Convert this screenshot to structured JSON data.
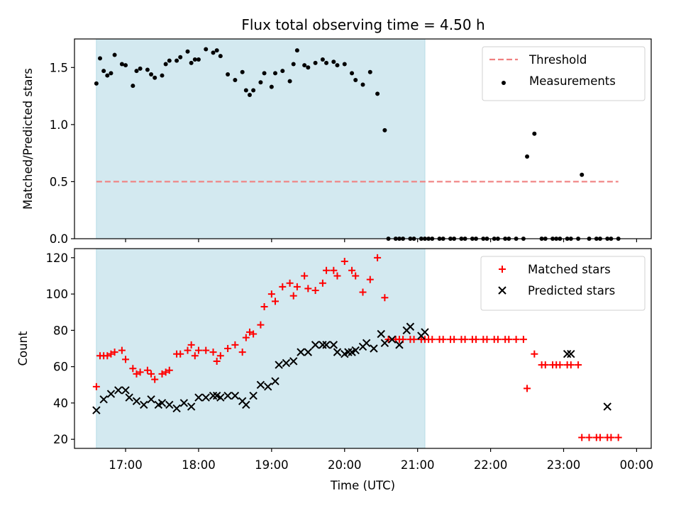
{
  "chart_data": [
    {
      "type": "scatter",
      "title": "Flux total observing time = 4.50 h",
      "xlabel": "",
      "ylabel": "Matched/Predicted stars",
      "xlim_hours": [
        16.3,
        24.2
      ],
      "ylim": [
        0,
        1.75
      ],
      "yticks": [
        0.0,
        0.5,
        1.0,
        1.5
      ],
      "ytick_labels": [
        "0.0",
        "0.5",
        "1.0",
        "1.5"
      ],
      "xticks_hours": [
        17,
        18,
        19,
        20,
        21,
        22,
        23,
        24
      ],
      "xtick_labels": [],
      "shaded_region_hours": [
        16.6,
        21.1
      ],
      "shaded_color": "#d3e9f0",
      "legend_position": "upper right",
      "threshold": {
        "name": "Threshold",
        "value": 0.5,
        "x_range_hours": [
          16.6,
          23.75
        ],
        "color": "#f08080"
      },
      "series": [
        {
          "name": "Measurements",
          "color": "#000000",
          "marker": "dot",
          "x_hours": [
            16.6,
            16.65,
            16.7,
            16.75,
            16.8,
            16.85,
            16.95,
            17.0,
            17.1,
            17.15,
            17.2,
            17.3,
            17.35,
            17.4,
            17.5,
            17.55,
            17.6,
            17.7,
            17.75,
            17.85,
            17.9,
            17.95,
            18.0,
            18.1,
            18.2,
            18.25,
            18.3,
            18.4,
            18.5,
            18.6,
            18.65,
            18.7,
            18.75,
            18.85,
            18.9,
            19.0,
            19.05,
            19.15,
            19.25,
            19.3,
            19.35,
            19.45,
            19.5,
            19.6,
            19.7,
            19.75,
            19.85,
            19.9,
            20.0,
            20.1,
            20.15,
            20.25,
            20.35,
            20.45,
            20.55,
            20.6,
            20.7,
            20.75,
            20.8,
            20.9,
            20.95,
            21.05,
            21.1,
            21.15,
            21.2,
            21.3,
            21.35,
            21.45,
            21.5,
            21.6,
            21.65,
            21.75,
            21.8,
            21.9,
            21.95,
            22.05,
            22.1,
            22.2,
            22.25,
            22.35,
            22.45,
            22.5,
            22.6,
            22.7,
            22.75,
            22.85,
            22.9,
            22.95,
            23.05,
            23.1,
            23.2,
            23.25,
            23.35,
            23.45,
            23.5,
            23.6,
            23.65,
            23.75
          ],
          "values": [
            1.36,
            1.58,
            1.47,
            1.43,
            1.45,
            1.61,
            1.53,
            1.52,
            1.34,
            1.47,
            1.49,
            1.48,
            1.44,
            1.41,
            1.43,
            1.53,
            1.56,
            1.56,
            1.59,
            1.64,
            1.54,
            1.57,
            1.57,
            1.66,
            1.63,
            1.65,
            1.6,
            1.44,
            1.39,
            1.46,
            1.3,
            1.26,
            1.3,
            1.37,
            1.45,
            1.33,
            1.45,
            1.47,
            1.38,
            1.53,
            1.65,
            1.52,
            1.5,
            1.54,
            1.57,
            1.54,
            1.55,
            1.52,
            1.53,
            1.45,
            1.39,
            1.35,
            1.46,
            1.27,
            0.95,
            0,
            0,
            0,
            0,
            0,
            0,
            0,
            0,
            0,
            0,
            0,
            0,
            0,
            0,
            0,
            0,
            0,
            0,
            0,
            0,
            0,
            0,
            0,
            0,
            0,
            0,
            0.72,
            0.92,
            0,
            0,
            0,
            0,
            0,
            0,
            0,
            0,
            0.56,
            0,
            0,
            0,
            0,
            0,
            0
          ]
        }
      ]
    },
    {
      "type": "scatter",
      "title": "",
      "xlabel": "Time (UTC)",
      "ylabel": "Count",
      "xlim_hours": [
        16.3,
        24.2
      ],
      "ylim": [
        15,
        125
      ],
      "yticks": [
        20,
        40,
        60,
        80,
        100,
        120
      ],
      "ytick_labels": [
        "20",
        "40",
        "60",
        "80",
        "100",
        "120"
      ],
      "xticks_hours": [
        17,
        18,
        19,
        20,
        21,
        22,
        23,
        24
      ],
      "xtick_labels": [
        "17:00",
        "18:00",
        "19:00",
        "20:00",
        "21:00",
        "22:00",
        "23:00",
        "00:00"
      ],
      "shaded_region_hours": [
        16.6,
        21.1
      ],
      "shaded_color": "#d3e9f0",
      "legend_position": "upper right",
      "series": [
        {
          "name": "Matched stars",
          "color": "#ff0000",
          "marker": "plus",
          "x_hours": [
            16.6,
            16.65,
            16.7,
            16.75,
            16.8,
            16.85,
            16.95,
            17.0,
            17.1,
            17.15,
            17.2,
            17.3,
            17.35,
            17.4,
            17.5,
            17.55,
            17.6,
            17.7,
            17.75,
            17.85,
            17.9,
            17.95,
            18.0,
            18.1,
            18.2,
            18.25,
            18.3,
            18.4,
            18.5,
            18.6,
            18.65,
            18.7,
            18.75,
            18.85,
            18.9,
            19.0,
            19.05,
            19.15,
            19.25,
            19.3,
            19.35,
            19.45,
            19.5,
            19.6,
            19.7,
            19.75,
            19.85,
            19.9,
            20.0,
            20.1,
            20.15,
            20.25,
            20.35,
            20.45,
            20.55,
            20.6,
            20.7,
            20.75,
            20.8,
            20.9,
            20.95,
            21.05,
            21.1,
            21.15,
            21.2,
            21.3,
            21.35,
            21.45,
            21.5,
            21.6,
            21.65,
            21.75,
            21.8,
            21.9,
            21.95,
            22.05,
            22.1,
            22.2,
            22.25,
            22.35,
            22.45,
            22.5,
            22.6,
            22.7,
            22.75,
            22.85,
            22.9,
            22.95,
            23.05,
            23.1,
            23.2,
            23.25,
            23.35,
            23.45,
            23.5,
            23.6,
            23.65,
            23.75
          ],
          "values": [
            49,
            66,
            66,
            66,
            67,
            68,
            69,
            64,
            59,
            56,
            57,
            58,
            56,
            53,
            56,
            57,
            58,
            67,
            67,
            69,
            72,
            66,
            69,
            69,
            68,
            63,
            66,
            70,
            72,
            68,
            76,
            79,
            78,
            83,
            93,
            100,
            96,
            104,
            106,
            99,
            104,
            110,
            103,
            102,
            106,
            113,
            113,
            110,
            118,
            113,
            110,
            101,
            108,
            120,
            98,
            75,
            75,
            75,
            75,
            75,
            75,
            75,
            75,
            75,
            75,
            75,
            75,
            75,
            75,
            75,
            75,
            75,
            75,
            75,
            75,
            75,
            75,
            75,
            75,
            75,
            75,
            48,
            67,
            61,
            61,
            61,
            61,
            61,
            61,
            61,
            61,
            21,
            21,
            21,
            21,
            21,
            21,
            21
          ]
        },
        {
          "name": "Predicted stars",
          "color": "#000000",
          "marker": "x",
          "x_hours": [
            16.6,
            16.7,
            16.8,
            16.9,
            17.0,
            17.05,
            17.15,
            17.25,
            17.35,
            17.45,
            17.5,
            17.6,
            17.7,
            17.8,
            17.9,
            18.0,
            18.1,
            18.2,
            18.25,
            18.3,
            18.4,
            18.5,
            18.6,
            18.65,
            18.75,
            18.85,
            18.95,
            19.05,
            19.1,
            19.2,
            19.3,
            19.4,
            19.5,
            19.6,
            19.7,
            19.75,
            19.85,
            19.9,
            20.0,
            20.05,
            20.1,
            20.15,
            20.25,
            20.3,
            20.4,
            20.5,
            20.55,
            20.65,
            20.75,
            20.85,
            20.9,
            21.05,
            21.1,
            23.05,
            23.1,
            23.6
          ],
          "values": [
            36,
            42,
            45,
            47,
            47,
            43,
            41,
            39,
            42,
            39,
            40,
            39,
            37,
            40,
            38,
            43,
            43,
            44,
            44,
            43,
            44,
            44,
            41,
            39,
            44,
            50,
            49,
            52,
            61,
            62,
            63,
            68,
            68,
            72,
            72,
            72,
            72,
            68,
            67,
            68,
            68,
            69,
            71,
            73,
            70,
            78,
            73,
            75,
            72,
            80,
            82,
            77,
            79,
            67,
            67,
            38
          ]
        }
      ]
    }
  ]
}
